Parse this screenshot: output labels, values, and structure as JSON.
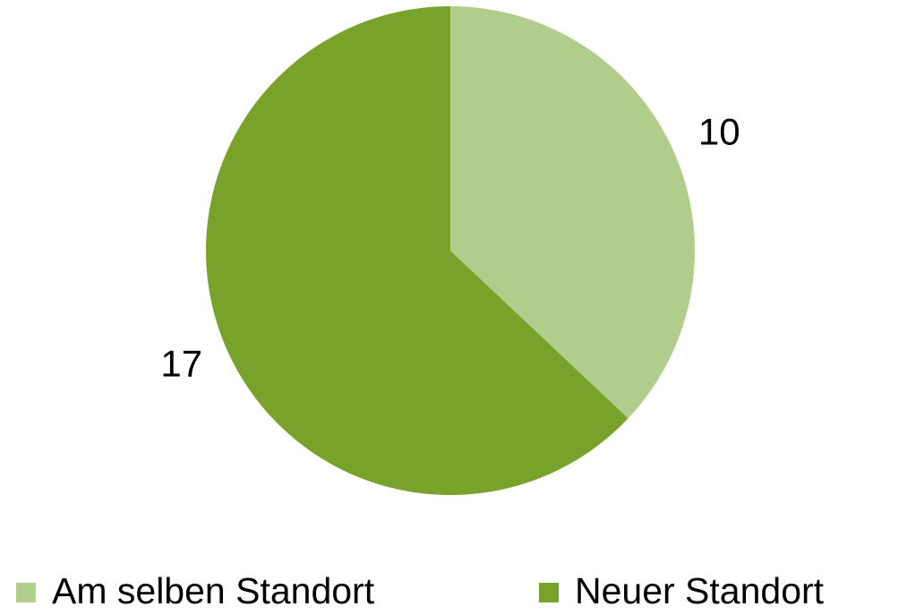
{
  "chart_data": {
    "type": "pie",
    "categories": [
      "Am selben Standort",
      "Neuer Standort"
    ],
    "values": [
      10,
      17
    ],
    "colors": [
      "#b0cd8b",
      "#79a22a"
    ]
  }
}
